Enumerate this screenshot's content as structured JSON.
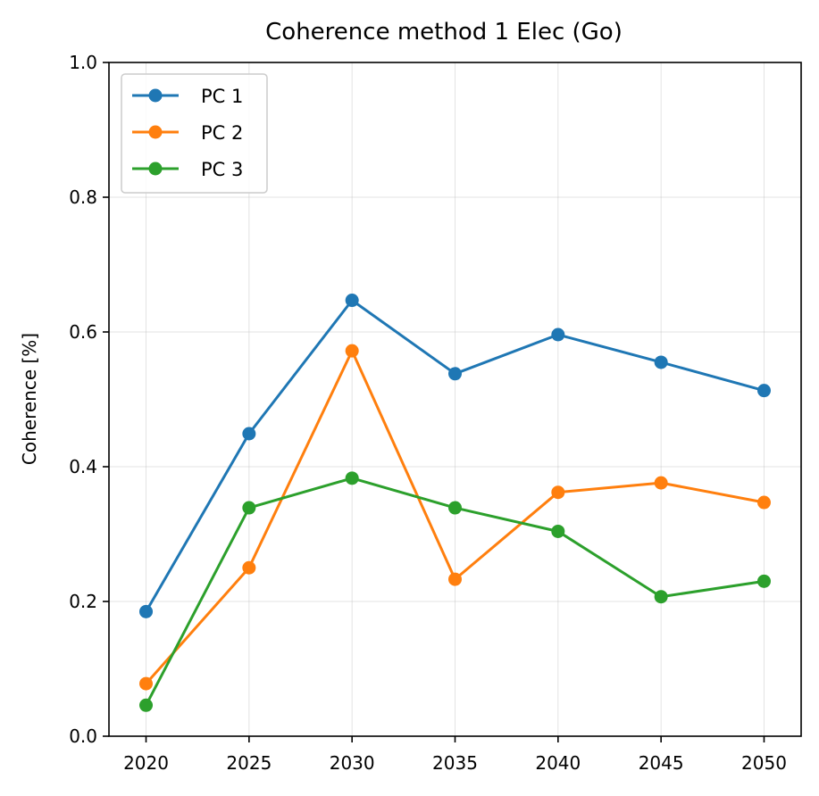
{
  "chart_data": {
    "type": "line",
    "title": "Coherence method 1 Elec (Go)",
    "xlabel": "",
    "ylabel": "Coherence [%]",
    "x": [
      2020,
      2025,
      2030,
      2035,
      2040,
      2045,
      2050
    ],
    "xlim": [
      2018.2,
      2051.8
    ],
    "ylim": [
      0,
      1.0
    ],
    "xticks": [
      "2020",
      "2025",
      "2030",
      "2035",
      "2040",
      "2045",
      "2050"
    ],
    "yticks": [
      "0.0",
      "0.2",
      "0.4",
      "0.6",
      "0.8",
      "1.0"
    ],
    "grid": true,
    "legend_position": "upper-left",
    "series": [
      {
        "name": "PC 1",
        "color": "#1f77b4",
        "values": [
          0.185,
          0.449,
          0.647,
          0.538,
          0.596,
          0.555,
          0.513
        ]
      },
      {
        "name": "PC 2",
        "color": "#ff7f0e",
        "values": [
          0.078,
          0.25,
          0.572,
          0.233,
          0.362,
          0.376,
          0.347
        ]
      },
      {
        "name": "PC 3",
        "color": "#2ca02c",
        "values": [
          0.046,
          0.339,
          0.383,
          0.339,
          0.304,
          0.207,
          0.23
        ]
      }
    ]
  }
}
